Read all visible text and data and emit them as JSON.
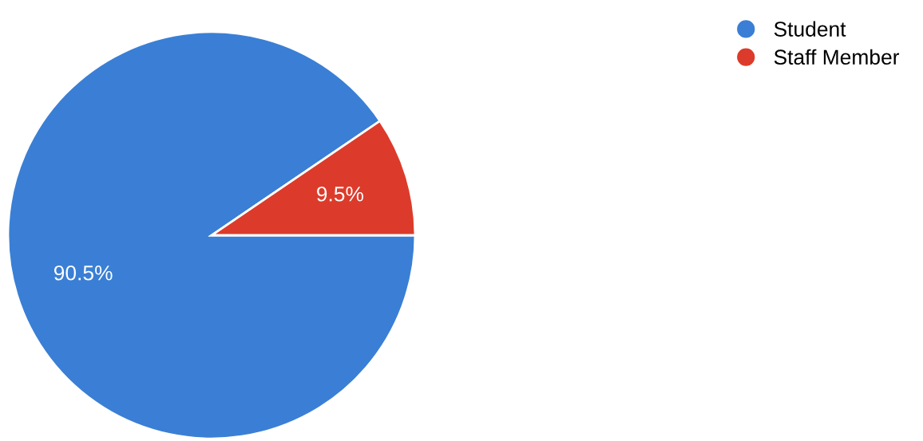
{
  "chart_data": {
    "type": "pie",
    "categories": [
      "Student",
      "Staff Member"
    ],
    "values": [
      90.5,
      9.5
    ],
    "colors": [
      "#3a7fd5",
      "#dc3b2b"
    ],
    "value_labels": [
      "90.5%",
      "9.5%"
    ],
    "legend": "top right"
  }
}
